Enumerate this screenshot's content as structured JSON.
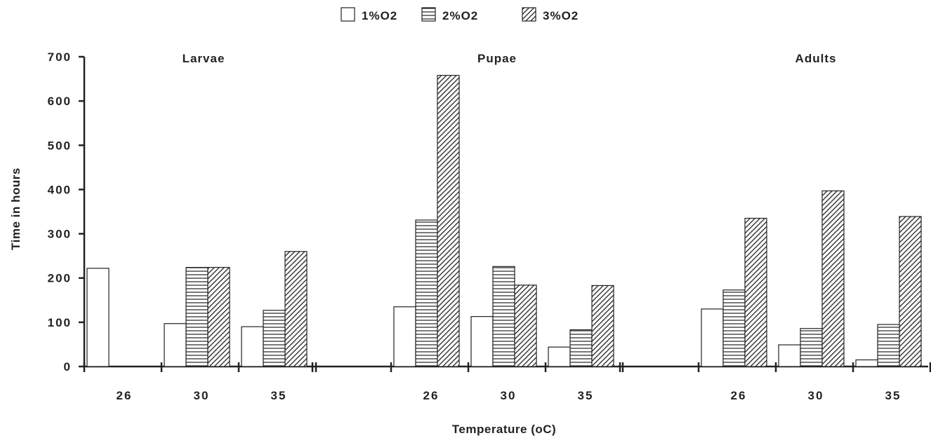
{
  "chart_data": {
    "type": "bar",
    "title": "",
    "xlabel": "Temperature (oC)",
    "ylabel": "Time in hours",
    "ylim": [
      0,
      700
    ],
    "yticks": [
      "0",
      "100",
      "200",
      "300",
      "400",
      "500",
      "600",
      "700"
    ],
    "grid": false,
    "legend_placement": "top-center",
    "legend": [
      {
        "label": "1%O2",
        "pattern": "empty"
      },
      {
        "label": "2%O2",
        "pattern": "horizontal-lines"
      },
      {
        "label": "3%O2",
        "pattern": "diagonal-hatch"
      }
    ],
    "groups": [
      {
        "name": "Larvae",
        "categories": [
          "26",
          "30",
          "35"
        ],
        "series": [
          {
            "name": "1%O2",
            "values": [
              222,
              97,
              90
            ]
          },
          {
            "name": "2%O2",
            "values": [
              0,
              224,
              127
            ]
          },
          {
            "name": "3%O2",
            "values": [
              0,
              224,
              260
            ]
          }
        ]
      },
      {
        "name": "Pupae",
        "categories": [
          "26",
          "30",
          "35"
        ],
        "series": [
          {
            "name": "1%O2",
            "values": [
              135,
              113,
              44
            ]
          },
          {
            "name": "2%O2",
            "values": [
              331,
              226,
              83
            ]
          },
          {
            "name": "3%O2",
            "values": [
              658,
              184,
              183
            ]
          }
        ]
      },
      {
        "name": "Adults",
        "categories": [
          "26",
          "30",
          "35"
        ],
        "series": [
          {
            "name": "1%O2",
            "values": [
              130,
              49,
              15
            ]
          },
          {
            "name": "2%O2",
            "values": [
              173,
              86,
              95
            ]
          },
          {
            "name": "3%O2",
            "values": [
              335,
              397,
              339
            ]
          }
        ]
      }
    ],
    "colors": {
      "stroke": "#222222",
      "fill": "#ffffff"
    }
  }
}
